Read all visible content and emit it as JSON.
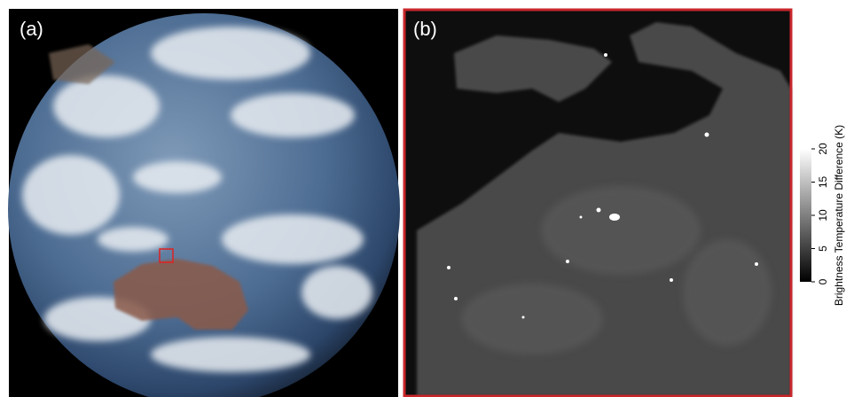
{
  "panels": [
    {
      "label": "(a)"
    },
    {
      "label": "(b)"
    }
  ],
  "colorbar": {
    "label": "Brightness Temperature Difference (K)",
    "lim": [
      0,
      20
    ],
    "ticks": [
      0,
      5,
      10,
      15,
      20
    ]
  }
}
